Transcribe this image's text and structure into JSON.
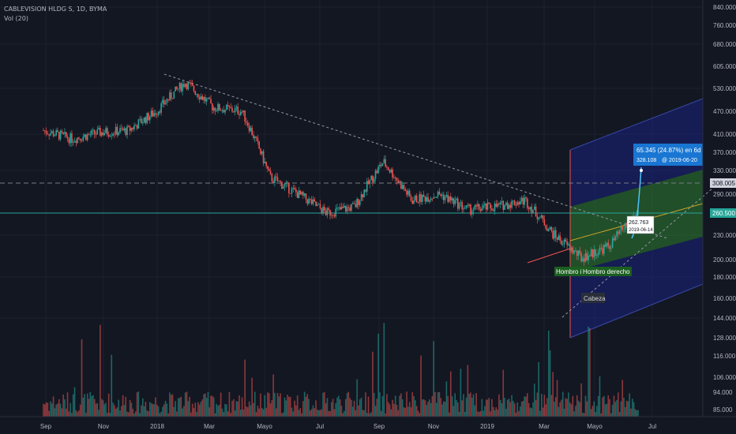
{
  "header": {
    "symbol_line": "CABLEVISION HLDG S, 1D, BYMA",
    "indicator": "Vol (20)"
  },
  "price_axis": {
    "ticks": [
      "840.000",
      "760.000",
      "680.000",
      "605.000",
      "530.000",
      "470.000",
      "410.000",
      "370.000",
      "330.000",
      "290.000",
      "230.000",
      "200.000",
      "180.000",
      "160.000",
      "144.000",
      "128.000",
      "116.000",
      "106.000",
      "94.000",
      "85.000"
    ],
    "badges": [
      {
        "label": "308.005",
        "role": "dashed-level",
        "color": "#d1d4dc",
        "text_color": "#131722"
      },
      {
        "label": "260.500",
        "role": "horizontal-level",
        "color": "#26a69a",
        "text_color": "#ffffff"
      }
    ]
  },
  "time_axis": {
    "labels": [
      "Sep",
      "Nov",
      "2018",
      "Mar",
      "Mayo",
      "Jul",
      "Sep",
      "Nov",
      "2019",
      "Mar",
      "Mayo",
      "Jul"
    ]
  },
  "annotations": {
    "projection": {
      "line1": "65.345 (24.87%) en 6d",
      "line2": "328.108",
      "date": "@ 2019-06-20"
    },
    "price_marker": {
      "line1": "262.763",
      "line2": "2019-06-14"
    },
    "pattern_labels": {
      "left": "Hombro iz",
      "right": "Hombro derecho",
      "head": "Cabeza"
    }
  },
  "colors": {
    "background": "#131722",
    "grid": "#1e2230",
    "bull": "#26a69a",
    "bear": "#ef5350",
    "axis_text": "#b2b5be",
    "trendline": "#9598a1",
    "channel_fill_top": "#1a237e",
    "channel_fill_mid": "#2e7d32"
  },
  "chart_data": {
    "type": "candlestick",
    "title": "CABLEVISION HLDG S, 1D, BYMA",
    "y_scale": "log",
    "ylim": [
      83,
      860
    ],
    "grid": true,
    "series": [
      {
        "name": "Vol (20)",
        "values": []
      }
    ],
    "closes_approx": [
      {
        "date": "2017-09",
        "close": 420
      },
      {
        "date": "2017-10",
        "close": 400
      },
      {
        "date": "2017-11",
        "close": 415
      },
      {
        "date": "2017-12",
        "close": 420
      },
      {
        "date": "2018-01",
        "close": 470
      },
      {
        "date": "2018-02",
        "close": 555
      },
      {
        "date": "2018-03",
        "close": 480
      },
      {
        "date": "2018-04",
        "close": 470
      },
      {
        "date": "2018-05",
        "close": 320
      },
      {
        "date": "2018-06",
        "close": 290
      },
      {
        "date": "2018-07",
        "close": 260
      },
      {
        "date": "2018-08",
        "close": 270
      },
      {
        "date": "2018-09",
        "close": 350
      },
      {
        "date": "2018-10",
        "close": 280
      },
      {
        "date": "2018-11",
        "close": 290
      },
      {
        "date": "2018-12",
        "close": 265
      },
      {
        "date": "2019-01",
        "close": 270
      },
      {
        "date": "2019-02",
        "close": 280
      },
      {
        "date": "2019-03",
        "close": 230
      },
      {
        "date": "2019-04",
        "close": 200
      },
      {
        "date": "2019-05",
        "close": 215
      },
      {
        "date": "2019-06",
        "close": 262.763
      }
    ]
  }
}
